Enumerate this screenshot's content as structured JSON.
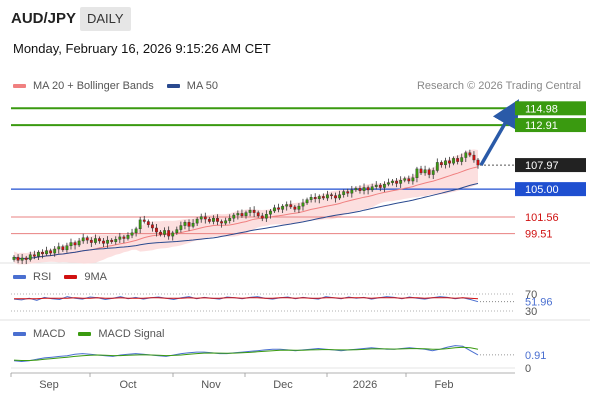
{
  "header": {
    "symbol": "AUD/JPY",
    "timeframe": "DAILY",
    "datetime": "Monday, February 16, 2026 9:15:26 AM CET",
    "copyright": "Research © 2026 Trading Central"
  },
  "legend_main": [
    {
      "label": "MA 20 + Bollinger Bands",
      "color": "#f08080"
    },
    {
      "label": "MA 50",
      "color": "#2a4a8f"
    }
  ],
  "legend_rsi": [
    {
      "label": "RSI",
      "color": "#4a6fd0"
    },
    {
      "label": "9MA",
      "color": "#d01010"
    }
  ],
  "legend_macd": [
    {
      "label": "MACD",
      "color": "#4a6fd0"
    },
    {
      "label": "MACD Signal",
      "color": "#3a9a10"
    }
  ],
  "colors": {
    "up": "#3a9a10",
    "down": "#d01010",
    "support": "#1f4fd0",
    "pivot": "#222222",
    "arrow": "#2a5aa8",
    "bb_fill": "#fcd9d9",
    "ma20": "#f08080",
    "ma50": "#2a4a8f"
  },
  "chart_data": [
    {
      "type": "candlestick",
      "title": "AUD/JPY",
      "ylim": [
        96.0,
        116.5
      ],
      "x_ticks": [
        "Sep",
        "Oct",
        "Nov",
        "Dec",
        "2026",
        "Feb"
      ],
      "levels": [
        {
          "value": 114.98,
          "label": "114.98",
          "kind": "resistance"
        },
        {
          "value": 112.91,
          "label": "112.91",
          "kind": "resistance"
        },
        {
          "value": 107.97,
          "label": "107.97",
          "kind": "pivot"
        },
        {
          "value": 105.0,
          "label": "105.00",
          "kind": "support"
        },
        {
          "value": 101.56,
          "label": "101.56",
          "kind": "support"
        },
        {
          "value": 99.51,
          "label": "99.51",
          "kind": "support"
        }
      ],
      "scenario_arrow": {
        "from": 107.97,
        "to": 114.98
      },
      "close_series": [
        96.6,
        96.2,
        96.5,
        96.3,
        96.9,
        96.7,
        97.2,
        97.0,
        97.4,
        97.1,
        97.6,
        97.9,
        97.5,
        98.0,
        98.4,
        98.1,
        98.6,
        99.0,
        98.7,
        98.4,
        98.9,
        98.6,
        98.3,
        98.7,
        98.5,
        98.8,
        99.1,
        98.9,
        99.3,
        99.6,
        100.1,
        101.2,
        101.0,
        100.6,
        100.2,
        99.7,
        99.4,
        99.9,
        99.2,
        99.6,
        100.0,
        100.5,
        100.9,
        100.4,
        100.8,
        101.3,
        101.6,
        101.3,
        101.0,
        101.4,
        101.0,
        100.8,
        101.1,
        101.4,
        101.8,
        102.0,
        101.7,
        102.1,
        102.4,
        102.1,
        101.7,
        101.4,
        101.9,
        102.3,
        102.7,
        102.5,
        102.9,
        103.1,
        102.8,
        102.5,
        102.9,
        103.3,
        103.7,
        104.0,
        103.8,
        104.1,
        103.9,
        104.3,
        104.2,
        103.9,
        104.3,
        104.7,
        104.5,
        104.9,
        105.1,
        104.8,
        105.2,
        104.9,
        105.3,
        105.5,
        105.2,
        105.6,
        105.8,
        106.0,
        105.7,
        106.1,
        106.3,
        106.0,
        106.4,
        107.5,
        107.0,
        107.4,
        106.8,
        107.3,
        108.3,
        108.0,
        108.5,
        108.2,
        108.8,
        108.4,
        108.9,
        109.5,
        109.2,
        108.6,
        107.97
      ]
    },
    {
      "type": "line",
      "title": "RSI",
      "ylim": [
        30,
        70
      ],
      "y_ticks": [
        30,
        70
      ],
      "last_value": 51.96,
      "series": [
        {
          "name": "RSI",
          "values": [
            58,
            56,
            60,
            55,
            62,
            59,
            57,
            64,
            60,
            58,
            63,
            61,
            57,
            60,
            64,
            59,
            62,
            58,
            61,
            63,
            60,
            57,
            61,
            64,
            59,
            62,
            60,
            58,
            63,
            61,
            59,
            62,
            64,
            60,
            58,
            61,
            63,
            59,
            62,
            60,
            58,
            64,
            61,
            59,
            63,
            60,
            62,
            58,
            61,
            64,
            62,
            59,
            63,
            60,
            58,
            61,
            64,
            62,
            59,
            61,
            57,
            51.96
          ]
        },
        {
          "name": "9MA",
          "values": [
            59,
            59,
            59,
            59,
            60,
            60,
            60,
            60,
            61,
            60,
            60,
            61,
            60,
            60,
            61,
            60,
            60,
            60,
            61,
            61,
            60,
            60,
            60,
            61,
            60,
            61,
            60,
            60,
            61,
            61,
            60,
            61,
            61,
            60,
            60,
            61,
            61,
            60,
            61,
            60,
            60,
            61,
            61,
            60,
            61,
            61,
            61,
            60,
            61,
            61,
            61,
            60,
            61,
            61,
            60,
            61,
            61,
            61,
            60,
            61,
            60,
            59
          ]
        }
      ]
    },
    {
      "type": "line",
      "title": "MACD",
      "ylim": [
        0,
        1.8
      ],
      "y_ticks": [
        0
      ],
      "last_value": 0.91,
      "series": [
        {
          "name": "MACD",
          "values": [
            0.5,
            0.45,
            0.5,
            0.6,
            0.7,
            0.75,
            0.8,
            0.85,
            0.95,
            1.0,
            0.95,
            0.9,
            0.85,
            0.8,
            0.9,
            0.95,
            1.0,
            0.95,
            0.9,
            0.85,
            0.8,
            0.9,
            1.0,
            1.05,
            1.1,
            1.1,
            1.05,
            1.0,
            1.0,
            1.05,
            1.1,
            1.15,
            1.2,
            1.25,
            1.3,
            1.3,
            1.25,
            1.2,
            1.25,
            1.3,
            1.35,
            1.3,
            1.25,
            1.2,
            1.25,
            1.3,
            1.35,
            1.4,
            1.35,
            1.3,
            1.3,
            1.35,
            1.4,
            1.35,
            1.3,
            1.2,
            1.3,
            1.45,
            1.55,
            1.5,
            1.2,
            0.91
          ]
        },
        {
          "name": "MACD Signal",
          "values": [
            0.55,
            0.52,
            0.52,
            0.55,
            0.6,
            0.65,
            0.7,
            0.75,
            0.8,
            0.85,
            0.88,
            0.9,
            0.88,
            0.86,
            0.86,
            0.88,
            0.9,
            0.92,
            0.9,
            0.88,
            0.86,
            0.87,
            0.9,
            0.95,
            1.0,
            1.03,
            1.04,
            1.03,
            1.02,
            1.03,
            1.05,
            1.08,
            1.12,
            1.16,
            1.2,
            1.23,
            1.24,
            1.23,
            1.23,
            1.25,
            1.27,
            1.28,
            1.27,
            1.25,
            1.25,
            1.27,
            1.29,
            1.32,
            1.33,
            1.32,
            1.31,
            1.32,
            1.34,
            1.34,
            1.33,
            1.3,
            1.3,
            1.34,
            1.4,
            1.44,
            1.4,
            1.3
          ]
        }
      ]
    }
  ]
}
